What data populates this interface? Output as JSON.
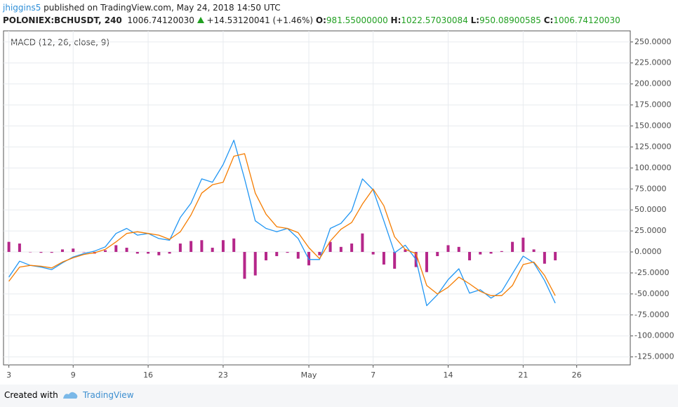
{
  "header": {
    "author": "jhiggins5",
    "published": "published on TradingView.com, May 24, 2018 14:50 UTC",
    "symbol": "POLONIEX:BCHUSDT, 240",
    "last": "1006.74120030",
    "change": "+14.53120041 (+1.46%)",
    "ohlc": [
      {
        "label": "O:",
        "value": "981.55000000"
      },
      {
        "label": "H:",
        "value": "1022.57030084"
      },
      {
        "label": "L:",
        "value": "950.08900585"
      },
      {
        "label": "C:",
        "value": "1006.74120030"
      }
    ]
  },
  "chart_data": {
    "type": "line",
    "title": "MACD (12, 26, close, 9)",
    "x": [
      2,
      3,
      4,
      5,
      6,
      7,
      8,
      9,
      10,
      11,
      12,
      13,
      14,
      15,
      16,
      17,
      18,
      19,
      20,
      21,
      22,
      23,
      24,
      25,
      26,
      27,
      28,
      29,
      30,
      31,
      32,
      33,
      34,
      35,
      36,
      37,
      38,
      39,
      40,
      41,
      42,
      43,
      44,
      45,
      46,
      47,
      48,
      49,
      50,
      51,
      52,
      53
    ],
    "series": [
      {
        "type": "bar",
        "color": "#b5278a",
        "values": [
          12,
          10,
          0,
          -1,
          -1,
          3,
          4,
          0,
          -2,
          2,
          8,
          5,
          -2,
          -2,
          -4,
          -2,
          10,
          13,
          14,
          5,
          14,
          16,
          -32,
          -28,
          -10,
          -5,
          -1,
          -8,
          -16,
          -4,
          12,
          6,
          10,
          22,
          -3,
          -15,
          -20,
          3,
          -18,
          -24,
          -5,
          8,
          6,
          -10,
          -3,
          -2,
          1,
          12,
          17,
          3,
          -14,
          -10
        ]
      },
      {
        "type": "line",
        "color": "#2196f3",
        "values": [
          -30,
          -11,
          -16,
          -18,
          -21,
          -13,
          -6,
          -2,
          1,
          6,
          22,
          28,
          20,
          22,
          16,
          14,
          41,
          58,
          87,
          83,
          104,
          133,
          87,
          37,
          28,
          24,
          28,
          16,
          -9,
          -9,
          28,
          34,
          49,
          87,
          74,
          37,
          -1,
          8,
          -9,
          -64,
          -51,
          -33,
          -20,
          -49,
          -45,
          -55,
          -47,
          -26,
          -5,
          -13,
          -34,
          -61
        ]
      },
      {
        "type": "line",
        "color": "#f57c00",
        "values": [
          -35,
          -18,
          -16,
          -17,
          -19,
          -12,
          -7,
          -3,
          -1,
          3,
          12,
          22,
          24,
          22,
          20,
          15,
          24,
          44,
          70,
          80,
          83,
          114,
          117,
          70,
          45,
          30,
          28,
          23,
          5,
          -8,
          13,
          27,
          35,
          57,
          75,
          55,
          18,
          3,
          -2,
          -40,
          -50,
          -42,
          -30,
          -38,
          -47,
          -52,
          -52,
          -40,
          -15,
          -12,
          -28,
          -52
        ]
      }
    ],
    "xlim": [
      1.5,
      60
    ],
    "xticks": [
      {
        "value": 2,
        "label": "3"
      },
      {
        "value": 8,
        "label": "9"
      },
      {
        "value": 15,
        "label": "16"
      },
      {
        "value": 22,
        "label": "23"
      },
      {
        "value": 30,
        "label": "May"
      },
      {
        "value": 36,
        "label": "7"
      },
      {
        "value": 43,
        "label": "14"
      },
      {
        "value": 50,
        "label": "21"
      },
      {
        "value": 55,
        "label": "26"
      }
    ],
    "ylim": [
      -134.5,
      263.2
    ],
    "yticks": [
      {
        "value": 250,
        "label": "250.0000"
      },
      {
        "value": 225,
        "label": "225.0000"
      },
      {
        "value": 200,
        "label": "200.0000"
      },
      {
        "value": 175,
        "label": "175.0000"
      },
      {
        "value": 150,
        "label": "150.0000"
      },
      {
        "value": 125,
        "label": "125.0000"
      },
      {
        "value": 100,
        "label": "100.0000"
      },
      {
        "value": 75,
        "label": "75.0000"
      },
      {
        "value": 50,
        "label": "50.0000"
      },
      {
        "value": 25,
        "label": "25.0000"
      },
      {
        "value": 0,
        "label": "0.0000"
      },
      {
        "value": -25,
        "label": "-25.0000"
      },
      {
        "value": -50,
        "label": "-50.0000"
      },
      {
        "value": -75,
        "label": "-75.0000"
      },
      {
        "value": -100,
        "label": "-100.0000"
      },
      {
        "value": -125,
        "label": "-125.0000"
      }
    ],
    "grid": true
  },
  "footer": {
    "created_with": "Created with",
    "brand": "TradingView"
  }
}
